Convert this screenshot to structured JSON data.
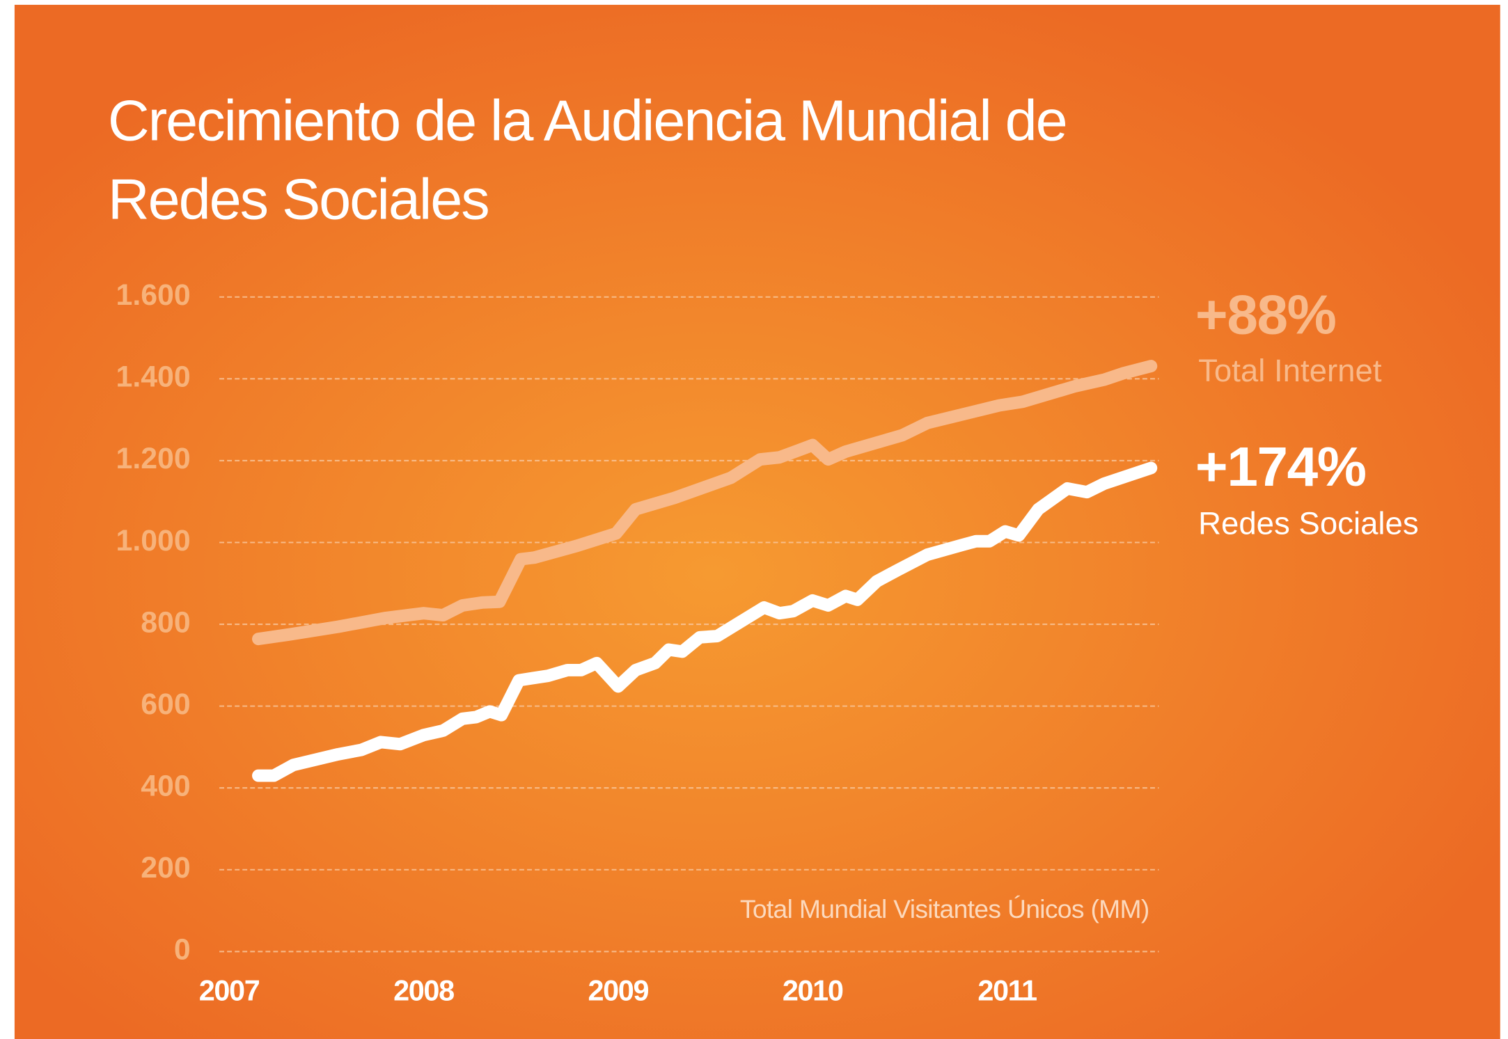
{
  "chart_data": {
    "type": "line",
    "title": "Crecimiento de la Audiencia Mundial de Redes Sociales",
    "title_lines": [
      "Crecimiento de la Audiencia Mundial de",
      "Redes Sociales"
    ],
    "axis_note": "Total Mundial Visitantes Únicos (MM)",
    "xlim": [
      2006.95,
      2011.78
    ],
    "xticks": [
      2007,
      2008,
      2009,
      2010,
      2011
    ],
    "ylim": [
      0,
      1600
    ],
    "yticks": [
      0,
      200,
      400,
      600,
      800,
      {
        "value": 1000,
        "label": "1.000"
      },
      {
        "value": 1200,
        "label": "1.200"
      },
      {
        "value": 1400,
        "label": "1.400"
      },
      {
        "value": 1600,
        "label": "1.600"
      }
    ],
    "grid": true,
    "series": [
      {
        "name": "Total Internet",
        "color": "#f8b98a",
        "annotation": "+88%",
        "x": [
          2007.15,
          2007.31,
          2007.56,
          2007.8,
          2008.0,
          2008.1,
          2008.2,
          2008.3,
          2008.39,
          2008.5,
          2008.57,
          2008.79,
          2008.99,
          2009.09,
          2009.29,
          2009.58,
          2009.73,
          2009.83,
          2010.0,
          2010.08,
          2010.17,
          2010.46,
          2010.59,
          2010.96,
          2011.08,
          2011.35,
          2011.5,
          2011.6,
          2011.74
        ],
        "values": [
          764,
          775,
          794,
          815,
          827,
          822,
          846,
          853,
          855,
          959,
          963,
          992,
          1022,
          1081,
          1109,
          1158,
          1203,
          1208,
          1238,
          1203,
          1222,
          1262,
          1292,
          1335,
          1344,
          1382,
          1398,
          1414,
          1431
        ]
      },
      {
        "name": "Redes Sociales",
        "color": "#ffffff",
        "annotation": "+174%",
        "x": [
          2007.15,
          2007.23,
          2007.33,
          2007.56,
          2007.68,
          2007.78,
          2007.88,
          2008.0,
          2008.1,
          2008.2,
          2008.27,
          2008.34,
          2008.4,
          2008.49,
          2008.64,
          2008.74,
          2008.81,
          2008.89,
          2009.0,
          2009.09,
          2009.19,
          2009.26,
          2009.33,
          2009.42,
          2009.51,
          2009.75,
          2009.83,
          2009.9,
          2010.0,
          2010.08,
          2010.17,
          2010.23,
          2010.33,
          2010.44,
          2010.59,
          2010.77,
          2010.84,
          2010.91,
          2010.99,
          2011.06,
          2011.16,
          2011.31,
          2011.41,
          2011.5,
          2011.74
        ],
        "values": [
          430,
          430,
          456,
          482,
          493,
          512,
          507,
          529,
          540,
          569,
          573,
          587,
          578,
          663,
          674,
          688,
          688,
          705,
          648,
          688,
          705,
          738,
          733,
          768,
          771,
          841,
          827,
          832,
          858,
          846,
          869,
          860,
          905,
          933,
          970,
          994,
          1003,
          1003,
          1027,
          1017,
          1081,
          1132,
          1123,
          1144,
          1182
        ]
      }
    ]
  }
}
